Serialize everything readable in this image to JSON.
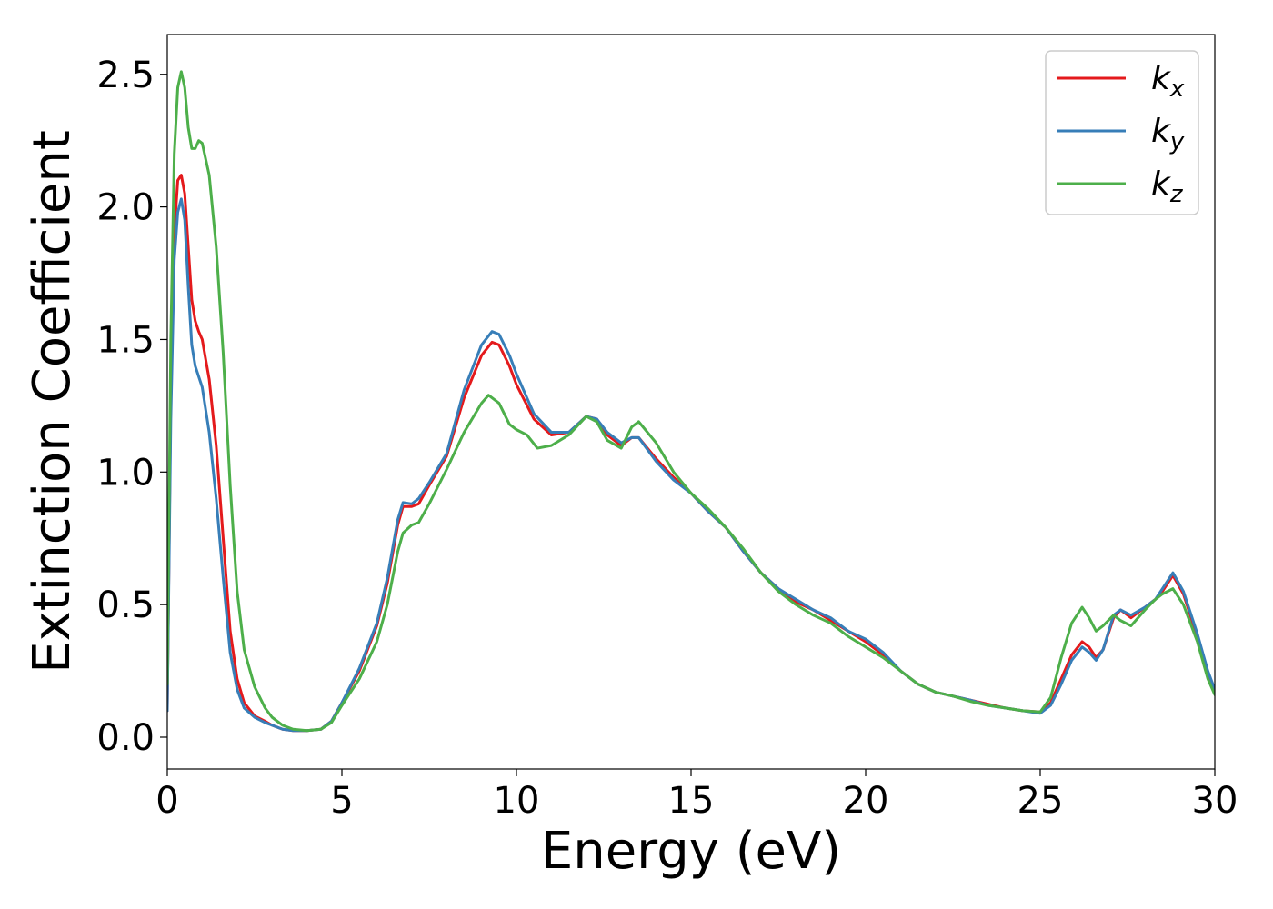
{
  "chart_data": {
    "type": "line",
    "xlabel": "Energy (eV)",
    "ylabel": "Extinction Coefficient",
    "xlim": [
      0,
      30
    ],
    "ylim": [
      -0.12,
      2.65
    ],
    "xticks": [
      0,
      5,
      10,
      15,
      20,
      25,
      30
    ],
    "yticks": [
      0.0,
      0.5,
      1.0,
      1.5,
      2.0,
      2.5
    ],
    "xtick_labels": [
      "0",
      "5",
      "10",
      "15",
      "20",
      "25",
      "30"
    ],
    "ytick_labels": [
      "0.0",
      "0.5",
      "1.0",
      "1.5",
      "2.0",
      "2.5"
    ],
    "grid": false,
    "legend_position": "top-right",
    "series": [
      {
        "name": "k_x",
        "legend_base": "k",
        "legend_sub": "x",
        "color": "#e41a1c",
        "points": [
          [
            0,
            0.1
          ],
          [
            0.1,
            1.3
          ],
          [
            0.2,
            1.9
          ],
          [
            0.3,
            2.1
          ],
          [
            0.4,
            2.12
          ],
          [
            0.5,
            2.05
          ],
          [
            0.6,
            1.85
          ],
          [
            0.7,
            1.65
          ],
          [
            0.8,
            1.57
          ],
          [
            0.9,
            1.53
          ],
          [
            1.0,
            1.5
          ],
          [
            1.2,
            1.35
          ],
          [
            1.4,
            1.1
          ],
          [
            1.6,
            0.75
          ],
          [
            1.8,
            0.4
          ],
          [
            2.0,
            0.22
          ],
          [
            2.2,
            0.13
          ],
          [
            2.5,
            0.08
          ],
          [
            2.8,
            0.06
          ],
          [
            3.0,
            0.045
          ],
          [
            3.3,
            0.03
          ],
          [
            3.6,
            0.025
          ],
          [
            4.0,
            0.025
          ],
          [
            4.4,
            0.03
          ],
          [
            4.7,
            0.06
          ],
          [
            5.0,
            0.13
          ],
          [
            5.5,
            0.25
          ],
          [
            6.0,
            0.42
          ],
          [
            6.3,
            0.58
          ],
          [
            6.6,
            0.8
          ],
          [
            6.75,
            0.87
          ],
          [
            7.0,
            0.87
          ],
          [
            7.2,
            0.88
          ],
          [
            7.5,
            0.95
          ],
          [
            8.0,
            1.06
          ],
          [
            8.5,
            1.28
          ],
          [
            9.0,
            1.44
          ],
          [
            9.3,
            1.49
          ],
          [
            9.5,
            1.48
          ],
          [
            9.8,
            1.4
          ],
          [
            10.0,
            1.33
          ],
          [
            10.5,
            1.2
          ],
          [
            11.0,
            1.14
          ],
          [
            11.5,
            1.15
          ],
          [
            12.0,
            1.21
          ],
          [
            12.3,
            1.2
          ],
          [
            12.6,
            1.14
          ],
          [
            13.0,
            1.1
          ],
          [
            13.3,
            1.13
          ],
          [
            13.5,
            1.13
          ],
          [
            14.0,
            1.05
          ],
          [
            14.5,
            0.98
          ],
          [
            15.0,
            0.92
          ],
          [
            15.5,
            0.85
          ],
          [
            16.0,
            0.79
          ],
          [
            16.5,
            0.7
          ],
          [
            17.0,
            0.62
          ],
          [
            17.5,
            0.56
          ],
          [
            18.0,
            0.51
          ],
          [
            18.5,
            0.48
          ],
          [
            19.0,
            0.44
          ],
          [
            19.5,
            0.4
          ],
          [
            20.0,
            0.36
          ],
          [
            20.5,
            0.31
          ],
          [
            21.0,
            0.25
          ],
          [
            21.5,
            0.2
          ],
          [
            22.0,
            0.17
          ],
          [
            22.5,
            0.155
          ],
          [
            23.0,
            0.14
          ],
          [
            23.5,
            0.125
          ],
          [
            24.0,
            0.11
          ],
          [
            24.5,
            0.1
          ],
          [
            25.0,
            0.095
          ],
          [
            25.3,
            0.13
          ],
          [
            25.6,
            0.22
          ],
          [
            25.9,
            0.31
          ],
          [
            26.2,
            0.36
          ],
          [
            26.4,
            0.34
          ],
          [
            26.6,
            0.3
          ],
          [
            26.8,
            0.33
          ],
          [
            27.1,
            0.45
          ],
          [
            27.3,
            0.48
          ],
          [
            27.6,
            0.45
          ],
          [
            28.0,
            0.49
          ],
          [
            28.3,
            0.52
          ],
          [
            28.5,
            0.55
          ],
          [
            28.8,
            0.61
          ],
          [
            29.1,
            0.54
          ],
          [
            29.5,
            0.38
          ],
          [
            29.8,
            0.24
          ],
          [
            30.0,
            0.17
          ]
        ]
      },
      {
        "name": "k_y",
        "legend_base": "k",
        "legend_sub": "y",
        "color": "#377eb8",
        "points": [
          [
            0,
            0.1
          ],
          [
            0.1,
            1.2
          ],
          [
            0.2,
            1.8
          ],
          [
            0.3,
            1.98
          ],
          [
            0.4,
            2.03
          ],
          [
            0.5,
            1.95
          ],
          [
            0.6,
            1.7
          ],
          [
            0.7,
            1.48
          ],
          [
            0.8,
            1.4
          ],
          [
            0.9,
            1.36
          ],
          [
            1.0,
            1.32
          ],
          [
            1.2,
            1.15
          ],
          [
            1.4,
            0.9
          ],
          [
            1.6,
            0.6
          ],
          [
            1.8,
            0.32
          ],
          [
            2.0,
            0.18
          ],
          [
            2.2,
            0.11
          ],
          [
            2.5,
            0.075
          ],
          [
            2.8,
            0.055
          ],
          [
            3.0,
            0.045
          ],
          [
            3.3,
            0.03
          ],
          [
            3.6,
            0.025
          ],
          [
            4.0,
            0.025
          ],
          [
            4.4,
            0.03
          ],
          [
            4.7,
            0.06
          ],
          [
            5.0,
            0.13
          ],
          [
            5.5,
            0.26
          ],
          [
            6.0,
            0.43
          ],
          [
            6.3,
            0.6
          ],
          [
            6.6,
            0.82
          ],
          [
            6.75,
            0.885
          ],
          [
            7.0,
            0.88
          ],
          [
            7.2,
            0.9
          ],
          [
            7.5,
            0.96
          ],
          [
            8.0,
            1.07
          ],
          [
            8.5,
            1.31
          ],
          [
            9.0,
            1.48
          ],
          [
            9.3,
            1.53
          ],
          [
            9.5,
            1.52
          ],
          [
            9.8,
            1.44
          ],
          [
            10.0,
            1.37
          ],
          [
            10.5,
            1.22
          ],
          [
            11.0,
            1.15
          ],
          [
            11.5,
            1.15
          ],
          [
            12.0,
            1.21
          ],
          [
            12.3,
            1.2
          ],
          [
            12.6,
            1.15
          ],
          [
            13.0,
            1.11
          ],
          [
            13.3,
            1.13
          ],
          [
            13.5,
            1.13
          ],
          [
            14.0,
            1.04
          ],
          [
            14.5,
            0.97
          ],
          [
            15.0,
            0.92
          ],
          [
            15.5,
            0.85
          ],
          [
            16.0,
            0.79
          ],
          [
            16.5,
            0.7
          ],
          [
            17.0,
            0.62
          ],
          [
            17.5,
            0.56
          ],
          [
            18.0,
            0.52
          ],
          [
            18.5,
            0.48
          ],
          [
            19.0,
            0.45
          ],
          [
            19.5,
            0.4
          ],
          [
            20.0,
            0.37
          ],
          [
            20.5,
            0.32
          ],
          [
            21.0,
            0.25
          ],
          [
            21.5,
            0.2
          ],
          [
            22.0,
            0.17
          ],
          [
            22.5,
            0.155
          ],
          [
            23.0,
            0.14
          ],
          [
            23.5,
            0.12
          ],
          [
            24.0,
            0.11
          ],
          [
            24.5,
            0.1
          ],
          [
            25.0,
            0.09
          ],
          [
            25.3,
            0.12
          ],
          [
            25.6,
            0.2
          ],
          [
            25.9,
            0.29
          ],
          [
            26.2,
            0.34
          ],
          [
            26.4,
            0.32
          ],
          [
            26.6,
            0.29
          ],
          [
            26.8,
            0.33
          ],
          [
            27.1,
            0.46
          ],
          [
            27.3,
            0.48
          ],
          [
            27.6,
            0.46
          ],
          [
            28.0,
            0.49
          ],
          [
            28.3,
            0.52
          ],
          [
            28.5,
            0.56
          ],
          [
            28.8,
            0.62
          ],
          [
            29.1,
            0.55
          ],
          [
            29.5,
            0.39
          ],
          [
            29.8,
            0.25
          ],
          [
            30.0,
            0.18
          ]
        ]
      },
      {
        "name": "k_z",
        "legend_base": "k",
        "legend_sub": "z",
        "color": "#4daf4a",
        "points": [
          [
            0,
            0.2
          ],
          [
            0.1,
            1.5
          ],
          [
            0.2,
            2.2
          ],
          [
            0.3,
            2.45
          ],
          [
            0.4,
            2.51
          ],
          [
            0.5,
            2.45
          ],
          [
            0.6,
            2.3
          ],
          [
            0.7,
            2.22
          ],
          [
            0.8,
            2.22
          ],
          [
            0.9,
            2.25
          ],
          [
            1.0,
            2.24
          ],
          [
            1.2,
            2.12
          ],
          [
            1.4,
            1.85
          ],
          [
            1.6,
            1.45
          ],
          [
            1.8,
            0.95
          ],
          [
            2.0,
            0.55
          ],
          [
            2.2,
            0.33
          ],
          [
            2.5,
            0.19
          ],
          [
            2.8,
            0.11
          ],
          [
            3.0,
            0.075
          ],
          [
            3.3,
            0.045
          ],
          [
            3.6,
            0.03
          ],
          [
            4.0,
            0.025
          ],
          [
            4.4,
            0.03
          ],
          [
            4.7,
            0.055
          ],
          [
            5.0,
            0.12
          ],
          [
            5.5,
            0.22
          ],
          [
            6.0,
            0.36
          ],
          [
            6.3,
            0.5
          ],
          [
            6.6,
            0.7
          ],
          [
            6.75,
            0.77
          ],
          [
            7.0,
            0.8
          ],
          [
            7.2,
            0.81
          ],
          [
            7.5,
            0.88
          ],
          [
            8.0,
            1.01
          ],
          [
            8.5,
            1.15
          ],
          [
            9.0,
            1.26
          ],
          [
            9.2,
            1.29
          ],
          [
            9.5,
            1.26
          ],
          [
            9.8,
            1.18
          ],
          [
            10.0,
            1.16
          ],
          [
            10.3,
            1.14
          ],
          [
            10.6,
            1.09
          ],
          [
            11.0,
            1.1
          ],
          [
            11.5,
            1.14
          ],
          [
            12.0,
            1.21
          ],
          [
            12.3,
            1.19
          ],
          [
            12.6,
            1.12
          ],
          [
            13.0,
            1.09
          ],
          [
            13.3,
            1.17
          ],
          [
            13.5,
            1.19
          ],
          [
            14.0,
            1.11
          ],
          [
            14.5,
            1.0
          ],
          [
            15.0,
            0.92
          ],
          [
            15.5,
            0.86
          ],
          [
            16.0,
            0.79
          ],
          [
            16.5,
            0.71
          ],
          [
            17.0,
            0.62
          ],
          [
            17.5,
            0.55
          ],
          [
            18.0,
            0.5
          ],
          [
            18.5,
            0.46
          ],
          [
            19.0,
            0.43
          ],
          [
            19.5,
            0.38
          ],
          [
            20.0,
            0.34
          ],
          [
            20.5,
            0.3
          ],
          [
            21.0,
            0.25
          ],
          [
            21.5,
            0.2
          ],
          [
            22.0,
            0.17
          ],
          [
            22.5,
            0.155
          ],
          [
            23.0,
            0.135
          ],
          [
            23.5,
            0.12
          ],
          [
            24.0,
            0.11
          ],
          [
            24.5,
            0.1
          ],
          [
            25.0,
            0.095
          ],
          [
            25.3,
            0.15
          ],
          [
            25.6,
            0.3
          ],
          [
            25.9,
            0.43
          ],
          [
            26.2,
            0.49
          ],
          [
            26.4,
            0.45
          ],
          [
            26.6,
            0.4
          ],
          [
            26.8,
            0.42
          ],
          [
            27.1,
            0.46
          ],
          [
            27.3,
            0.44
          ],
          [
            27.6,
            0.42
          ],
          [
            28.0,
            0.48
          ],
          [
            28.3,
            0.52
          ],
          [
            28.5,
            0.54
          ],
          [
            28.8,
            0.56
          ],
          [
            29.1,
            0.5
          ],
          [
            29.5,
            0.36
          ],
          [
            29.8,
            0.22
          ],
          [
            30.0,
            0.16
          ]
        ]
      }
    ]
  }
}
